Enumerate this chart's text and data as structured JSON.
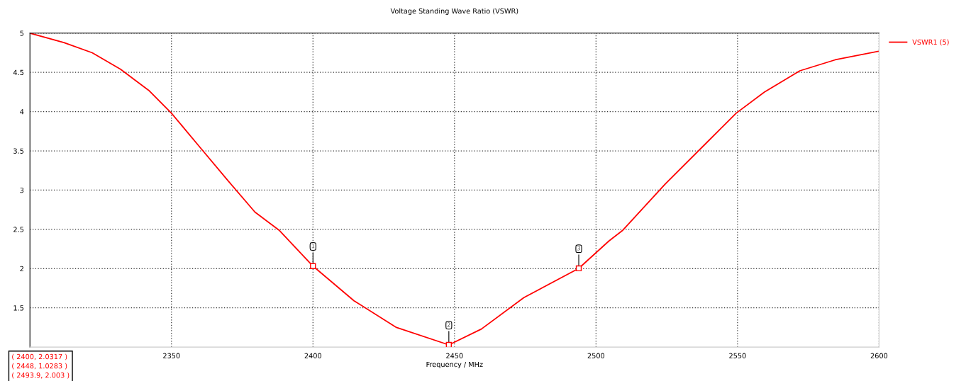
{
  "chart_data": {
    "type": "line",
    "title": "Voltage Standing Wave Ratio (VSWR)",
    "xlabel": "Frequency / MHz",
    "xlim": [
      2300,
      2600
    ],
    "xticks": [
      2350,
      2400,
      2450,
      2500,
      2550,
      2600
    ],
    "ylim": [
      1,
      5
    ],
    "yticks": [
      1.5,
      2,
      2.5,
      3,
      3.5,
      4,
      4.5,
      5
    ],
    "grid": true,
    "legend": "top right",
    "line_style": "solid",
    "marker": "none",
    "series": [
      {
        "name": "VSWR1 (5)",
        "color": "#ff0000",
        "x": [
          2300,
          2312,
          2322,
          2332,
          2342,
          2350,
          2359.5,
          2369.5,
          2379.5,
          2388,
          2400,
          2414.5,
          2429.5,
          2448,
          2459.5,
          2474.5,
          2493.9,
          2504.5,
          2509.5,
          2524.5,
          2539.5,
          2549.5,
          2559.5,
          2572,
          2584.5,
          2600
        ],
        "values": [
          5.0,
          4.88,
          4.75,
          4.54,
          4.27,
          3.98,
          3.57,
          3.14,
          2.72,
          2.49,
          2.0317,
          1.59,
          1.25,
          1.0283,
          1.23,
          1.63,
          2.003,
          2.35,
          2.49,
          3.08,
          3.62,
          3.98,
          4.25,
          4.52,
          4.66,
          4.77
        ]
      }
    ],
    "annotations": [
      {
        "text": "1",
        "x": 2400,
        "y": 2.0317
      },
      {
        "text": "2",
        "x": 2448,
        "y": 1.0283
      },
      {
        "text": "3",
        "x": 2493.9,
        "y": 2.003
      },
      "( 2400, 2.0317 )",
      "( 2448, 1.0283 )",
      "( 2493.9, 2.003 )"
    ]
  }
}
